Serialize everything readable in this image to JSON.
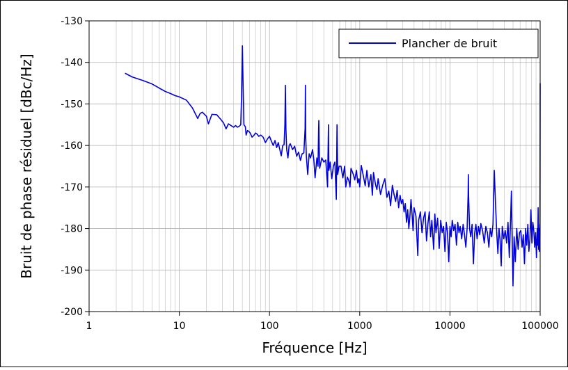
{
  "chart_data": {
    "type": "line",
    "xlabel": "Fréquence [Hz]",
    "ylabel": "Bruit de phase résiduel [dBc/Hz]",
    "x_scale": "log",
    "xlim": [
      1,
      100000
    ],
    "ylim": [
      -200,
      -130
    ],
    "x_ticks": [
      {
        "value": 1,
        "label": "1"
      },
      {
        "value": 10,
        "label": "10"
      },
      {
        "value": 100,
        "label": "100"
      },
      {
        "value": 1000,
        "label": "1000"
      },
      {
        "value": 10000,
        "label": "10000"
      },
      {
        "value": 100000,
        "label": "100000"
      }
    ],
    "y_ticks": [
      {
        "value": -130,
        "label": "-130"
      },
      {
        "value": -140,
        "label": "-140"
      },
      {
        "value": -150,
        "label": "-150"
      },
      {
        "value": -160,
        "label": "-160"
      },
      {
        "value": -170,
        "label": "-170"
      },
      {
        "value": -180,
        "label": "-180"
      },
      {
        "value": -190,
        "label": "-190"
      },
      {
        "value": -200,
        "label": "-200"
      }
    ],
    "grid": true,
    "legend_position": "top-right",
    "series": [
      {
        "name": "Plancher de bruit",
        "color": "#0000dd",
        "points": [
          [
            2.5,
            -142.6
          ],
          [
            3,
            -143.5
          ],
          [
            4,
            -144.4
          ],
          [
            5,
            -145.2
          ],
          [
            6,
            -146.2
          ],
          [
            7,
            -147
          ],
          [
            8,
            -147.5
          ],
          [
            9,
            -148
          ],
          [
            10,
            -148.3
          ],
          [
            12,
            -149.1
          ],
          [
            14,
            -151
          ],
          [
            16,
            -153.5
          ],
          [
            17,
            -152.3
          ],
          [
            18,
            -152
          ],
          [
            20,
            -153
          ],
          [
            21,
            -154.8
          ],
          [
            23,
            -152.5
          ],
          [
            26,
            -152.6
          ],
          [
            29,
            -153.8
          ],
          [
            31,
            -154.6
          ],
          [
            33,
            -156
          ],
          [
            35,
            -154.8
          ],
          [
            38,
            -155.3
          ],
          [
            40,
            -155.6
          ],
          [
            42,
            -155.2
          ],
          [
            44,
            -155.6
          ],
          [
            46,
            -155.4
          ],
          [
            48,
            -155
          ],
          [
            49,
            -148
          ],
          [
            50,
            -136
          ],
          [
            51,
            -146
          ],
          [
            52,
            -155
          ],
          [
            54,
            -155.5
          ],
          [
            55,
            -157.5
          ],
          [
            57,
            -156.4
          ],
          [
            59,
            -156.6
          ],
          [
            61,
            -157
          ],
          [
            64,
            -158
          ],
          [
            67,
            -157.6
          ],
          [
            70,
            -157
          ],
          [
            73,
            -157.3
          ],
          [
            76,
            -157.8
          ],
          [
            80,
            -157.5
          ],
          [
            85,
            -158
          ],
          [
            90,
            -159.3
          ],
          [
            95,
            -158.4
          ],
          [
            100,
            -157.8
          ],
          [
            105,
            -159
          ],
          [
            110,
            -160
          ],
          [
            115,
            -158.8
          ],
          [
            120,
            -160.5
          ],
          [
            125,
            -159.3
          ],
          [
            130,
            -161
          ],
          [
            135,
            -162.5
          ],
          [
            140,
            -160
          ],
          [
            145,
            -159.8
          ],
          [
            148,
            -155
          ],
          [
            150,
            -145.5
          ],
          [
            152,
            -156
          ],
          [
            155,
            -161
          ],
          [
            160,
            -163
          ],
          [
            165,
            -160
          ],
          [
            170,
            -159.6
          ],
          [
            180,
            -161
          ],
          [
            190,
            -160.2
          ],
          [
            200,
            -162.6
          ],
          [
            210,
            -161.6
          ],
          [
            220,
            -163.6
          ],
          [
            230,
            -162
          ],
          [
            240,
            -161.8
          ],
          [
            248,
            -156
          ],
          [
            250,
            -145.5
          ],
          [
            252,
            -158
          ],
          [
            256,
            -162.5
          ],
          [
            265,
            -167
          ],
          [
            275,
            -162
          ],
          [
            285,
            -163
          ],
          [
            300,
            -161
          ],
          [
            310,
            -163.5
          ],
          [
            320,
            -167.8
          ],
          [
            335,
            -163
          ],
          [
            345,
            -165
          ],
          [
            350,
            -156
          ],
          [
            352,
            -154
          ],
          [
            355,
            -160
          ],
          [
            360,
            -165.5
          ],
          [
            380,
            -163
          ],
          [
            400,
            -164
          ],
          [
            420,
            -163.5
          ],
          [
            440,
            -170
          ],
          [
            450,
            -155
          ],
          [
            455,
            -166
          ],
          [
            470,
            -164
          ],
          [
            490,
            -168
          ],
          [
            510,
            -165
          ],
          [
            530,
            -164
          ],
          [
            550,
            -173
          ],
          [
            560,
            -155
          ],
          [
            570,
            -167
          ],
          [
            590,
            -165
          ],
          [
            620,
            -165
          ],
          [
            650,
            -167.8
          ],
          [
            680,
            -165
          ],
          [
            700,
            -170
          ],
          [
            730,
            -167.6
          ],
          [
            760,
            -168.6
          ],
          [
            780,
            -170
          ],
          [
            800,
            -165.5
          ],
          [
            850,
            -167
          ],
          [
            880,
            -168.3
          ],
          [
            920,
            -166
          ],
          [
            950,
            -169
          ],
          [
            980,
            -168
          ],
          [
            1000,
            -170
          ],
          [
            1040,
            -164.8
          ],
          [
            1100,
            -167.5
          ],
          [
            1150,
            -169.7
          ],
          [
            1200,
            -166
          ],
          [
            1260,
            -170
          ],
          [
            1330,
            -167
          ],
          [
            1380,
            -172
          ],
          [
            1420,
            -166.5
          ],
          [
            1500,
            -169.5
          ],
          [
            1550,
            -170.6
          ],
          [
            1600,
            -168
          ],
          [
            1700,
            -171.8
          ],
          [
            1800,
            -169.5
          ],
          [
            1900,
            -168
          ],
          [
            2000,
            -172.5
          ],
          [
            2100,
            -171
          ],
          [
            2200,
            -174.5
          ],
          [
            2300,
            -169.6
          ],
          [
            2400,
            -171.8
          ],
          [
            2500,
            -173.5
          ],
          [
            2600,
            -170.8
          ],
          [
            2700,
            -175
          ],
          [
            2800,
            -172
          ],
          [
            2900,
            -174
          ],
          [
            3000,
            -173
          ],
          [
            3100,
            -176
          ],
          [
            3200,
            -174
          ],
          [
            3300,
            -178.5
          ],
          [
            3400,
            -175.5
          ],
          [
            3500,
            -180
          ],
          [
            3600,
            -177
          ],
          [
            3700,
            -173
          ],
          [
            3800,
            -176.5
          ],
          [
            3900,
            -180.5
          ],
          [
            4000,
            -175
          ],
          [
            4200,
            -177
          ],
          [
            4400,
            -186.5
          ],
          [
            4500,
            -178
          ],
          [
            4700,
            -176
          ],
          [
            4900,
            -181
          ],
          [
            5100,
            -177.5
          ],
          [
            5300,
            -176
          ],
          [
            5500,
            -183
          ],
          [
            5700,
            -178.8
          ],
          [
            5900,
            -176
          ],
          [
            6100,
            -182
          ],
          [
            6300,
            -178
          ],
          [
            6600,
            -185
          ],
          [
            6800,
            -176.5
          ],
          [
            7000,
            -181
          ],
          [
            7300,
            -177.5
          ],
          [
            7600,
            -184.8
          ],
          [
            7900,
            -178
          ],
          [
            8200,
            -181
          ],
          [
            8500,
            -179.5
          ],
          [
            8800,
            -185.5
          ],
          [
            9100,
            -178.5
          ],
          [
            9400,
            -181
          ],
          [
            9700,
            -188
          ],
          [
            10000,
            -179.5
          ],
          [
            10300,
            -182
          ],
          [
            10600,
            -178
          ],
          [
            11000,
            -180.5
          ],
          [
            11400,
            -179
          ],
          [
            11800,
            -184
          ],
          [
            12200,
            -178.5
          ],
          [
            12600,
            -181
          ],
          [
            13000,
            -179.5
          ],
          [
            13500,
            -182.5
          ],
          [
            14000,
            -179
          ],
          [
            14500,
            -181.5
          ],
          [
            15000,
            -184.5
          ],
          [
            15500,
            -180
          ],
          [
            15900,
            -172
          ],
          [
            16000,
            -167
          ],
          [
            16100,
            -172
          ],
          [
            16500,
            -180
          ],
          [
            17000,
            -182
          ],
          [
            17600,
            -179
          ],
          [
            18200,
            -188.5
          ],
          [
            18800,
            -181
          ],
          [
            19400,
            -179
          ],
          [
            20000,
            -182.5
          ],
          [
            20700,
            -179.5
          ],
          [
            21400,
            -181.5
          ],
          [
            22000,
            -178.8
          ],
          [
            23000,
            -180.5
          ],
          [
            24000,
            -183.5
          ],
          [
            25000,
            -179.5
          ],
          [
            26000,
            -181
          ],
          [
            27000,
            -184.5
          ],
          [
            28000,
            -180
          ],
          [
            29000,
            -182
          ],
          [
            30000,
            -179
          ],
          [
            31000,
            -166
          ],
          [
            32000,
            -174
          ],
          [
            33000,
            -181
          ],
          [
            34000,
            -186
          ],
          [
            35000,
            -180
          ],
          [
            36000,
            -183
          ],
          [
            37000,
            -189
          ],
          [
            38000,
            -179.5
          ],
          [
            39500,
            -182.5
          ],
          [
            41000,
            -180.5
          ],
          [
            42500,
            -183.5
          ],
          [
            44000,
            -178.5
          ],
          [
            45500,
            -187
          ],
          [
            47000,
            -178
          ],
          [
            48000,
            -171
          ],
          [
            49000,
            -183
          ],
          [
            50000,
            -193.8
          ],
          [
            51500,
            -182
          ],
          [
            53000,
            -188
          ],
          [
            55000,
            -180
          ],
          [
            57000,
            -185
          ],
          [
            59000,
            -181
          ],
          [
            61000,
            -180.5
          ],
          [
            63000,
            -184.5
          ],
          [
            65000,
            -181.5
          ],
          [
            67000,
            -188.5
          ],
          [
            69000,
            -180
          ],
          [
            71000,
            -184
          ],
          [
            73000,
            -179
          ],
          [
            75000,
            -185.5
          ],
          [
            77000,
            -182.5
          ],
          [
            79000,
            -175.5
          ],
          [
            81000,
            -183.5
          ],
          [
            83000,
            -178.5
          ],
          [
            85000,
            -180.5
          ],
          [
            87000,
            -184.5
          ],
          [
            89000,
            -181
          ],
          [
            91000,
            -187
          ],
          [
            93000,
            -180
          ],
          [
            94000,
            -184
          ],
          [
            95000,
            -175
          ],
          [
            96000,
            -185
          ],
          [
            97000,
            -180
          ],
          [
            98000,
            -185.5
          ],
          [
            99000,
            -179
          ],
          [
            99500,
            -182
          ],
          [
            100000,
            -145
          ]
        ]
      }
    ]
  }
}
